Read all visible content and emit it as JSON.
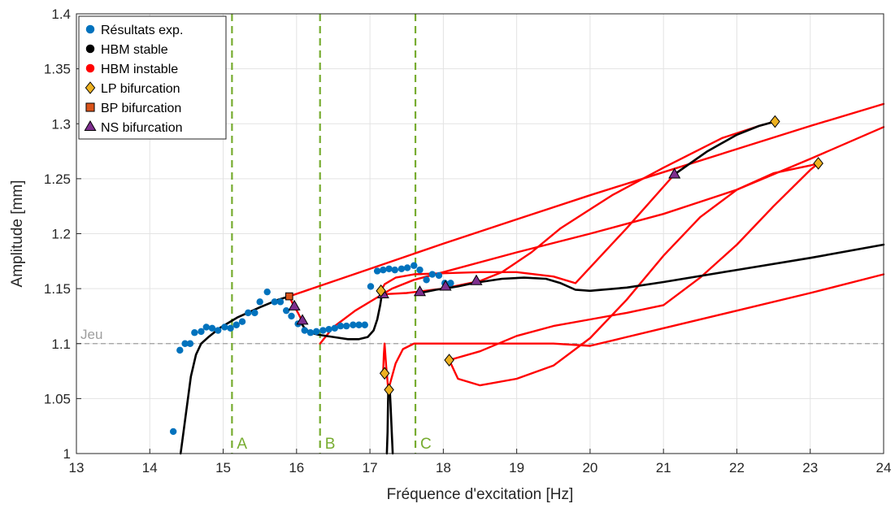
{
  "chart_data": {
    "type": "line",
    "title": "",
    "xlabel": "Fréquence d'excitation [Hz]",
    "ylabel": "Amplitude [mm]",
    "xlim": [
      13,
      24
    ],
    "ylim": [
      1,
      1.4
    ],
    "xticks": [
      13,
      14,
      15,
      16,
      17,
      18,
      19,
      20,
      21,
      22,
      23,
      24
    ],
    "xtick_labels": [
      "13",
      "14",
      "15",
      "16",
      "17",
      "18",
      "19",
      "20",
      "21",
      "22",
      "23",
      "24"
    ],
    "yticks": [
      1,
      1.05,
      1.1,
      1.15,
      1.2,
      1.25,
      1.3,
      1.35,
      1.4
    ],
    "ytick_labels": [
      "1",
      "1.05",
      "1.1",
      "1.15",
      "1.2",
      "1.25",
      "1.3",
      "1.35",
      "1.4"
    ],
    "grid": true,
    "legend_position": "top-left",
    "legend": [
      {
        "label": "Résultats exp.",
        "marker": "circle",
        "color": "#0072BD"
      },
      {
        "label": "HBM stable",
        "marker": "circle",
        "color": "#000000"
      },
      {
        "label": "HBM instable",
        "marker": "circle",
        "color": "#FF0000"
      },
      {
        "label": "LP bifurcation",
        "marker": "diamond",
        "color": "#EDB120"
      },
      {
        "label": "BP bifurcation",
        "marker": "square",
        "color": "#D95319"
      },
      {
        "label": "NS bifurcation",
        "marker": "triangle",
        "color": "#7E2F8E"
      }
    ],
    "reference_lines": [
      {
        "orientation": "horizontal",
        "value": 1.1,
        "label": "Jeu",
        "color": "#9E9E9E",
        "style": "dashed"
      },
      {
        "orientation": "vertical",
        "value": 15.12,
        "label": "A",
        "color": "#77AC30",
        "style": "dashed"
      },
      {
        "orientation": "vertical",
        "value": 16.32,
        "label": "B",
        "color": "#77AC30",
        "style": "dashed"
      },
      {
        "orientation": "vertical",
        "value": 17.62,
        "label": "C",
        "color": "#77AC30",
        "style": "dashed"
      }
    ],
    "experimental_points": {
      "x": [
        14.32,
        14.41,
        14.48,
        14.55,
        14.61,
        14.7,
        14.77,
        14.85,
        14.93,
        15.02,
        15.1,
        15.18,
        15.26,
        15.34,
        15.43,
        15.5,
        15.6,
        15.7,
        15.78,
        15.86,
        15.93,
        16.02,
        16.11,
        16.19,
        16.27,
        16.36,
        16.44,
        16.52,
        16.6,
        16.68,
        16.77,
        16.85,
        16.93,
        17.01,
        17.1,
        17.18,
        17.26,
        17.34,
        17.43,
        17.51,
        17.6,
        17.68,
        17.77,
        17.85,
        17.94,
        18.02,
        18.1
      ],
      "y": [
        1.02,
        1.094,
        1.1,
        1.1,
        1.11,
        1.111,
        1.115,
        1.114,
        1.112,
        1.115,
        1.114,
        1.117,
        1.12,
        1.128,
        1.128,
        1.138,
        1.147,
        1.138,
        1.138,
        1.13,
        1.125,
        1.118,
        1.112,
        1.11,
        1.111,
        1.112,
        1.113,
        1.114,
        1.116,
        1.116,
        1.117,
        1.117,
        1.117,
        1.152,
        1.166,
        1.167,
        1.168,
        1.167,
        1.168,
        1.169,
        1.171,
        1.167,
        1.158,
        1.163,
        1.162,
        1.155,
        1.155
      ]
    },
    "series": [
      {
        "name": "HBM stable",
        "color": "#000000",
        "x": [
          14.42,
          14.48,
          14.56,
          14.63,
          14.7,
          14.8,
          14.95,
          15.2,
          15.5,
          15.75,
          15.9
        ],
        "y": [
          1.0,
          1.03,
          1.07,
          1.09,
          1.1,
          1.106,
          1.114,
          1.124,
          1.133,
          1.14,
          1.143
        ]
      },
      {
        "name": "HBM stable",
        "color": "#000000",
        "x": [
          16.05,
          16.1,
          16.18,
          16.3,
          16.5,
          16.7,
          16.85,
          16.97,
          17.05,
          17.1,
          17.14,
          17.17
        ],
        "y": [
          1.12,
          1.115,
          1.11,
          1.108,
          1.106,
          1.104,
          1.104,
          1.106,
          1.112,
          1.122,
          1.135,
          1.148
        ]
      },
      {
        "name": "HBM stable",
        "color": "#000000",
        "x": [
          17.27,
          17.28,
          17.29,
          17.3,
          17.31
        ],
        "y": [
          1.058,
          1.045,
          1.03,
          1.015,
          1.0
        ]
      },
      {
        "name": "HBM stable",
        "color": "#000000",
        "x": [
          17.23,
          17.24,
          17.245,
          17.25
        ],
        "y": [
          1.0,
          1.02,
          1.04,
          1.058
        ]
      },
      {
        "name": "HBM stable",
        "color": "#000000",
        "x": [
          17.68,
          17.9,
          18.2,
          18.48
        ],
        "y": [
          1.146,
          1.149,
          1.152,
          1.156
        ]
      },
      {
        "name": "HBM stable",
        "color": "#000000",
        "x": [
          18.5,
          18.8,
          19.1,
          19.4,
          19.6,
          19.8,
          20.0,
          20.5,
          21.0,
          22.0,
          23.0,
          24.0
        ],
        "y": [
          1.156,
          1.159,
          1.16,
          1.159,
          1.155,
          1.149,
          1.148,
          1.151,
          1.156,
          1.167,
          1.178,
          1.19
        ]
      },
      {
        "name": "HBM stable",
        "color": "#000000",
        "x": [
          21.15,
          21.6,
          22.0,
          22.3,
          22.52
        ],
        "y": [
          1.254,
          1.275,
          1.29,
          1.298,
          1.302
        ]
      },
      {
        "name": "HBM instable",
        "color": "#FF0000",
        "x": [
          15.9,
          15.95,
          16.02,
          16.08
        ],
        "y": [
          1.143,
          1.136,
          1.128,
          1.12
        ]
      },
      {
        "name": "HBM instable",
        "color": "#FF0000",
        "x": [
          15.9,
          17.0,
          18.0,
          19.0,
          20.0,
          21.0,
          22.0,
          23.0,
          24.0
        ],
        "y": [
          1.143,
          1.168,
          1.191,
          1.213,
          1.235,
          1.256,
          1.277,
          1.298,
          1.318
        ]
      },
      {
        "name": "HBM instable",
        "color": "#FF0000",
        "x": [
          16.32,
          16.5,
          16.8,
          17.1,
          17.3,
          17.6,
          18.0,
          19.0,
          20.0,
          21.0,
          22.0,
          23.0,
          24.0
        ],
        "y": [
          1.1,
          1.115,
          1.13,
          1.142,
          1.15,
          1.158,
          1.165,
          1.183,
          1.2,
          1.218,
          1.24,
          1.268,
          1.297
        ]
      },
      {
        "name": "HBM instable",
        "color": "#FF0000",
        "x": [
          17.15,
          17.2,
          17.35,
          17.6,
          18.0,
          18.5,
          19.0,
          19.5,
          19.8,
          20.5,
          21.15
        ],
        "y": [
          1.148,
          1.154,
          1.16,
          1.163,
          1.164,
          1.165,
          1.165,
          1.161,
          1.155,
          1.205,
          1.254
        ]
      },
      {
        "name": "HBM instable",
        "color": "#FF0000",
        "x": [
          17.2,
          17.5,
          18.0,
          18.5,
          18.8,
          19.2,
          19.6,
          20.3,
          21.0,
          21.8,
          22.3,
          22.52
        ],
        "y": [
          1.145,
          1.146,
          1.15,
          1.157,
          1.165,
          1.183,
          1.205,
          1.235,
          1.26,
          1.287,
          1.298,
          1.302
        ]
      },
      {
        "name": "HBM instable",
        "color": "#FF0000",
        "x": [
          17.25,
          17.35,
          17.45,
          17.6,
          18.0,
          18.5,
          19.0,
          19.5,
          20.0
        ],
        "y": [
          1.058,
          1.082,
          1.095,
          1.1,
          1.1,
          1.1,
          1.1,
          1.1,
          1.098
        ]
      },
      {
        "name": "HBM instable",
        "color": "#FF0000",
        "x": [
          17.18,
          17.19,
          17.2,
          17.22,
          17.24,
          17.25
        ],
        "y": [
          1.073,
          1.09,
          1.1,
          1.08,
          1.065,
          1.058
        ]
      },
      {
        "name": "HBM instable",
        "color": "#FF0000",
        "x": [
          18.08,
          18.5,
          19.0,
          19.5,
          20.0,
          20.5,
          21.0,
          21.5,
          22.0,
          22.5,
          23.0,
          23.11
        ],
        "y": [
          1.085,
          1.093,
          1.107,
          1.116,
          1.122,
          1.128,
          1.135,
          1.16,
          1.19,
          1.225,
          1.258,
          1.264
        ]
      },
      {
        "name": "HBM instable",
        "color": "#FF0000",
        "x": [
          18.08,
          18.2,
          18.5,
          19.0,
          19.5,
          20.0,
          20.5,
          21.0,
          21.5,
          22.0,
          22.5,
          23.0,
          23.11
        ],
        "y": [
          1.085,
          1.068,
          1.062,
          1.068,
          1.08,
          1.105,
          1.14,
          1.18,
          1.215,
          1.24,
          1.255,
          1.262,
          1.264
        ]
      },
      {
        "name": "HBM instable",
        "color": "#FF0000",
        "x": [
          20.0,
          21.0,
          22.0,
          23.0,
          24.0
        ],
        "y": [
          1.098,
          1.114,
          1.13,
          1.146,
          1.163
        ]
      }
    ],
    "bifurcations": {
      "LP": {
        "x": [
          17.15,
          17.2,
          17.26,
          18.08,
          22.52,
          23.11
        ],
        "y": [
          1.148,
          1.073,
          1.058,
          1.085,
          1.302,
          1.264
        ]
      },
      "BP": {
        "x": [
          15.9
        ],
        "y": [
          1.143
        ]
      },
      "NS": {
        "x": [
          15.97,
          16.08,
          17.18,
          17.68,
          18.03,
          18.45,
          21.15
        ],
        "y": [
          1.134,
          1.121,
          1.145,
          1.147,
          1.152,
          1.157,
          1.254
        ]
      }
    }
  }
}
